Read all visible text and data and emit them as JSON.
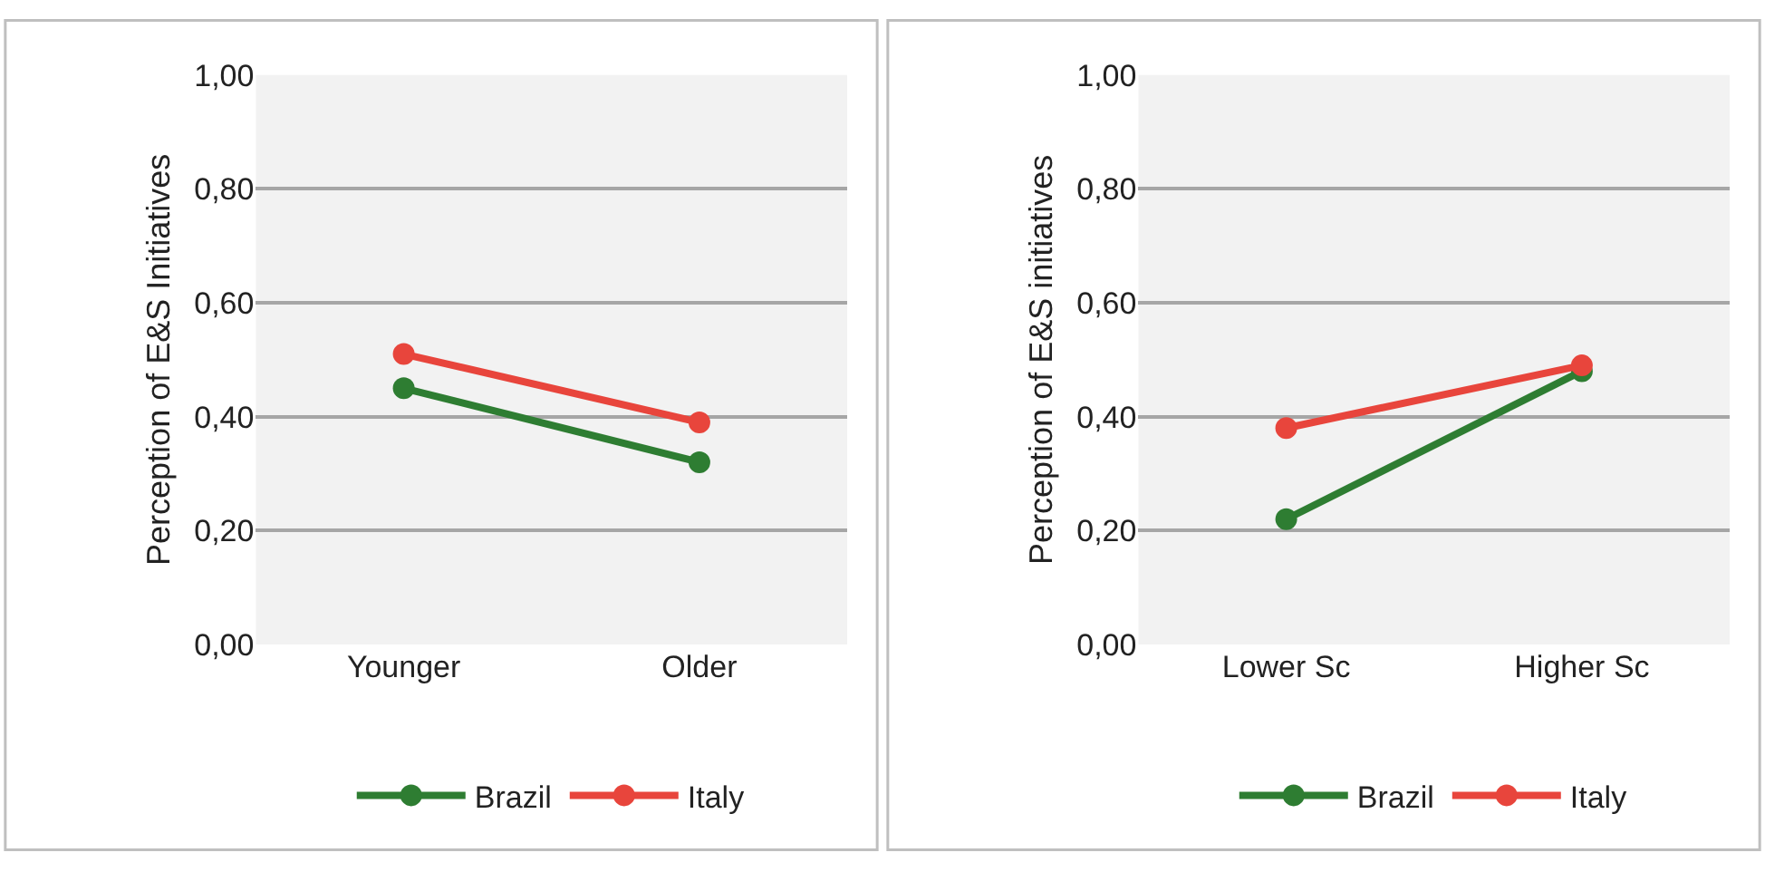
{
  "chart_data": [
    {
      "type": "line",
      "ylabel": "Perception of E&S Initiatives",
      "categories": [
        "Younger",
        "Older"
      ],
      "series": [
        {
          "name": "Brazil",
          "color": "#2e7d32",
          "values": [
            0.45,
            0.32
          ]
        },
        {
          "name": "Italy",
          "color": "#e8453c",
          "values": [
            0.51,
            0.39
          ]
        }
      ],
      "ylim": [
        0,
        1
      ],
      "yticks": [
        {
          "value": 0,
          "label": "0,00"
        },
        {
          "value": 0.2,
          "label": "0,20"
        },
        {
          "value": 0.4,
          "label": "0,40"
        },
        {
          "value": 0.6,
          "label": "0,60"
        },
        {
          "value": 0.8,
          "label": "0,80"
        },
        {
          "value": 1,
          "label": "1,00"
        }
      ],
      "grid": "y",
      "legend": "bottom",
      "marker": "circle",
      "line_style": "solid"
    },
    {
      "type": "line",
      "ylabel": "Perception of E&S initiatives",
      "categories": [
        "Lower Sc",
        "Higher Sc"
      ],
      "series": [
        {
          "name": "Brazil",
          "color": "#2e7d32",
          "values": [
            0.22,
            0.48
          ]
        },
        {
          "name": "Italy",
          "color": "#e8453c",
          "values": [
            0.38,
            0.49
          ]
        }
      ],
      "ylim": [
        0,
        1
      ],
      "yticks": [
        {
          "value": 0,
          "label": "0,00"
        },
        {
          "value": 0.2,
          "label": "0,20"
        },
        {
          "value": 0.4,
          "label": "0,40"
        },
        {
          "value": 0.6,
          "label": "0,60"
        },
        {
          "value": 0.8,
          "label": "0,80"
        },
        {
          "value": 1,
          "label": "1,00"
        }
      ],
      "grid": "y",
      "legend": "bottom",
      "marker": "circle",
      "line_style": "solid"
    }
  ]
}
